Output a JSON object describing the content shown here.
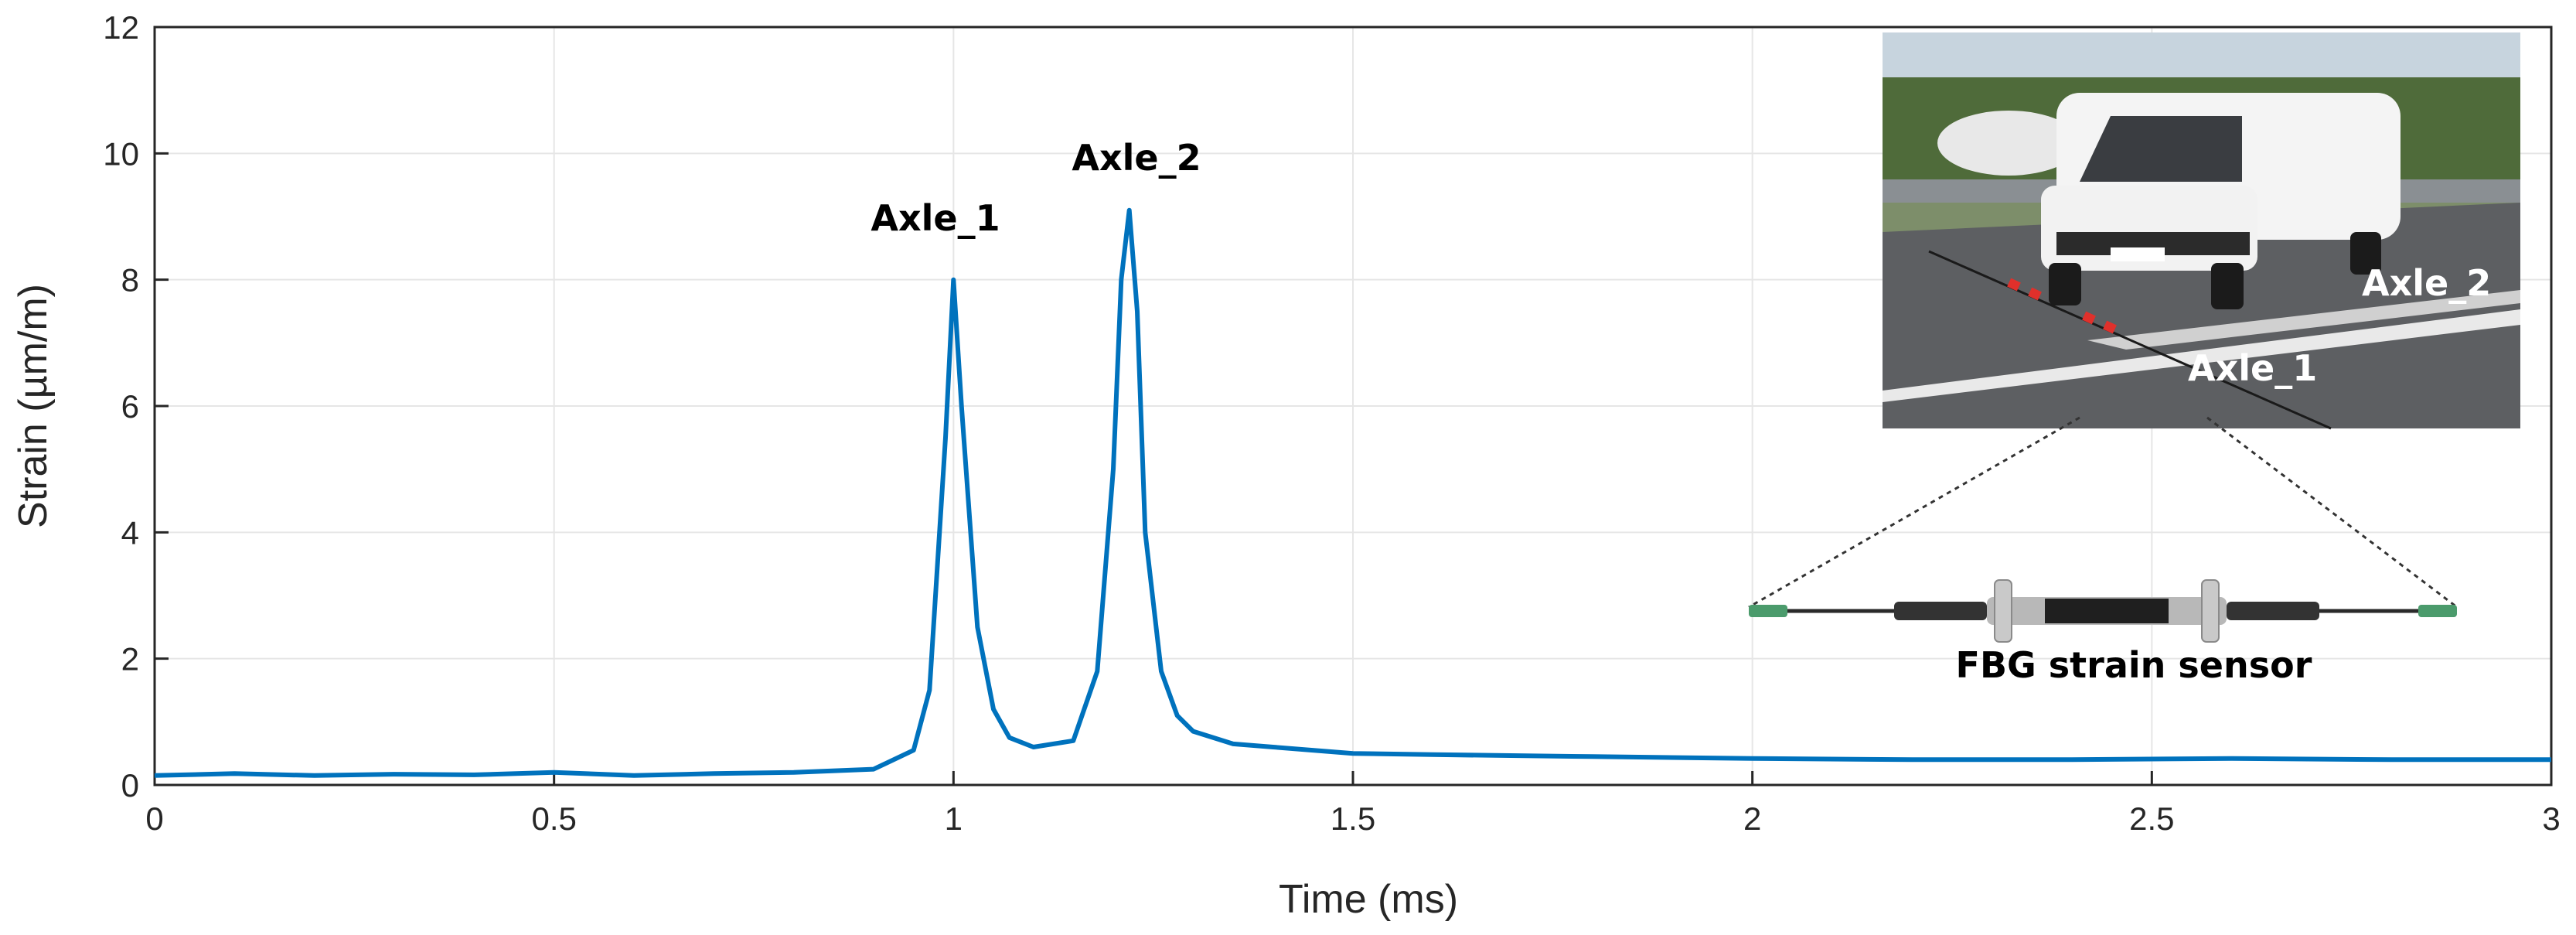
{
  "chart_data": {
    "type": "line",
    "title": "",
    "xlabel": "Time (ms)",
    "ylabel": "Strain (µm/m)",
    "xlim": [
      0,
      3
    ],
    "ylim": [
      0,
      12
    ],
    "xticks": [
      0,
      0.5,
      1,
      1.5,
      2,
      2.5,
      3
    ],
    "xtick_labels": [
      "0",
      "0.5",
      "1",
      "1.5",
      "2",
      "2.5",
      "3"
    ],
    "yticks": [
      0,
      2,
      4,
      6,
      8,
      10,
      12
    ],
    "ytick_labels": [
      "0",
      "2",
      "4",
      "6",
      "8",
      "10",
      "12"
    ],
    "grid": true,
    "legend": "none",
    "colors": {
      "line": "#0072BD",
      "grid": "#e6e6e6",
      "axes": "#262626"
    },
    "series": [
      {
        "x": [
          0,
          0.1,
          0.2,
          0.3,
          0.4,
          0.5,
          0.6,
          0.7,
          0.8,
          0.9,
          0.95,
          0.97,
          0.99,
          1.0,
          1.01,
          1.03,
          1.05,
          1.07,
          1.1,
          1.15,
          1.18,
          1.2,
          1.21,
          1.22,
          1.23,
          1.24,
          1.26,
          1.28,
          1.3,
          1.35,
          1.4,
          1.5,
          1.6,
          1.8,
          2.0,
          2.2,
          2.4,
          2.6,
          2.8,
          3.0
        ],
        "y": [
          0.15,
          0.18,
          0.15,
          0.17,
          0.16,
          0.2,
          0.15,
          0.18,
          0.2,
          0.25,
          0.55,
          1.5,
          5.5,
          8.0,
          6.0,
          2.5,
          1.2,
          0.75,
          0.6,
          0.7,
          1.8,
          5.0,
          8.0,
          9.1,
          7.5,
          4.0,
          1.8,
          1.1,
          0.85,
          0.65,
          0.6,
          0.5,
          0.48,
          0.45,
          0.42,
          0.4,
          0.4,
          0.42,
          0.4,
          0.4
        ]
      }
    ],
    "annotations": [
      {
        "text": "Axle_1",
        "x": 0.98,
        "y": 8.8
      },
      {
        "text": "Axle_2",
        "x": 1.23,
        "y": 10.0
      }
    ]
  },
  "inset": {
    "photo_labels": [
      "Axle_2",
      "Axle_1"
    ],
    "sensor_caption": "FBG strain sensor",
    "description_icon": "van-crossing-sensor-photo"
  }
}
